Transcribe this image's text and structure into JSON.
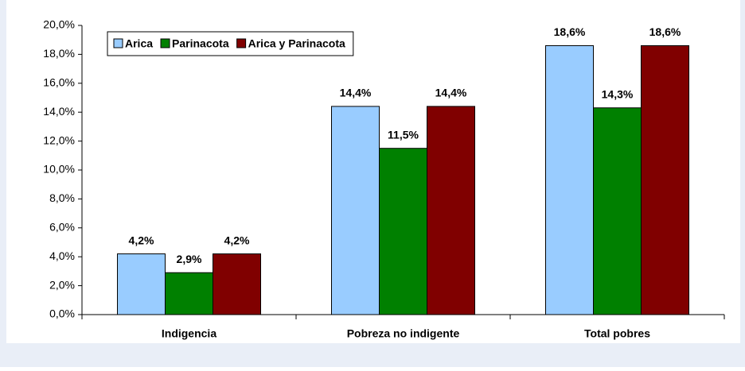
{
  "chart_data": {
    "type": "bar",
    "categories": [
      "Indigencia",
      "Pobreza no indigente",
      "Total pobres"
    ],
    "series": [
      {
        "name": "Arica",
        "color": "#99ccff",
        "values": [
          4.2,
          14.4,
          18.6
        ],
        "value_labels": [
          "4,2%",
          "14,4%",
          "18,6%"
        ]
      },
      {
        "name": "Parinacota",
        "color": "#008000",
        "values": [
          2.9,
          11.5,
          14.3
        ],
        "value_labels": [
          "2,9%",
          "11,5%",
          "14,3%"
        ]
      },
      {
        "name": "Arica y Parinacota",
        "color": "#800000",
        "values": [
          4.2,
          14.4,
          18.6
        ],
        "value_labels": [
          "4,2%",
          "14,4%",
          "18,6%"
        ]
      }
    ],
    "ylim": [
      0,
      20
    ],
    "yticks": [
      {
        "value": 0,
        "label": "0,0%"
      },
      {
        "value": 2,
        "label": "2,0%"
      },
      {
        "value": 4,
        "label": "4,0%"
      },
      {
        "value": 6,
        "label": "6,0%"
      },
      {
        "value": 8,
        "label": "8,0%"
      },
      {
        "value": 10,
        "label": "10,0%"
      },
      {
        "value": 12,
        "label": "12,0%"
      },
      {
        "value": 14,
        "label": "14,0%"
      },
      {
        "value": 16,
        "label": "16,0%"
      },
      {
        "value": 18,
        "label": "18,0%"
      },
      {
        "value": 20,
        "label": "20,0%"
      }
    ],
    "grid": false,
    "legend": "upper left"
  }
}
